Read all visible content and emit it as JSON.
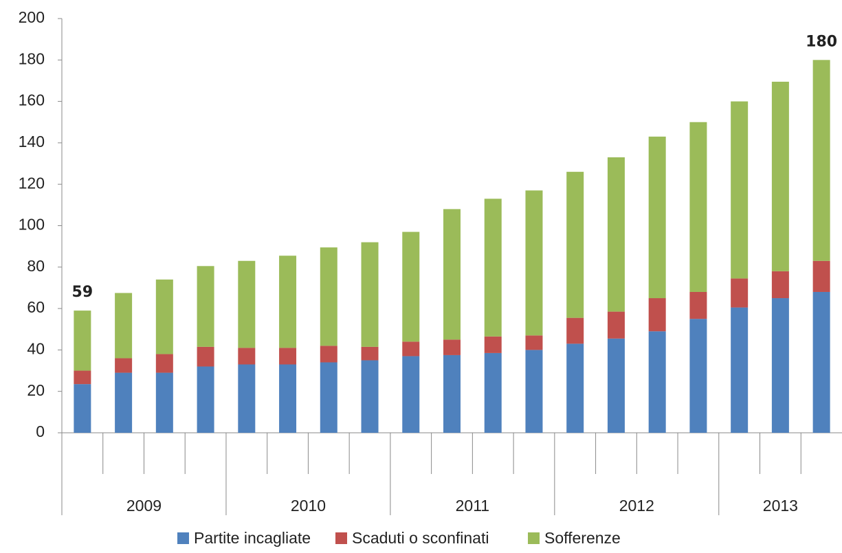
{
  "chart_data": {
    "type": "stacked-bar",
    "categories": [
      null,
      null,
      null,
      null,
      null,
      null,
      null,
      null,
      null,
      null,
      null,
      null,
      null,
      null,
      null,
      null,
      null,
      null,
      null
    ],
    "x_groups": [
      {
        "label": "2009",
        "size": 4
      },
      {
        "label": "2010",
        "size": 4
      },
      {
        "label": "2011",
        "size": 4
      },
      {
        "label": "2012",
        "size": 4
      },
      {
        "label": "2013",
        "size": 3
      }
    ],
    "series": [
      {
        "name": "Partite incagliate",
        "color": "#4f81bd",
        "values": [
          23.5,
          29,
          29,
          32,
          33,
          33,
          34,
          35,
          37,
          37.5,
          38.5,
          40,
          43,
          45.5,
          49,
          55,
          60.5,
          65,
          68
        ]
      },
      {
        "name": "Scaduti o sconfinati",
        "color": "#c0504d",
        "values": [
          6.5,
          7,
          9,
          9.5,
          8,
          8,
          8,
          6.5,
          7,
          7.5,
          8,
          7,
          12.5,
          13,
          16,
          13,
          14,
          13,
          15
        ]
      },
      {
        "name": "Sofferenze",
        "color": "#9bbb59",
        "values": [
          29,
          31.5,
          36,
          39,
          42,
          44.5,
          47.5,
          50.5,
          53,
          63,
          66.5,
          70,
          70.5,
          74.5,
          78,
          82,
          85.5,
          91.5,
          97
        ]
      }
    ],
    "total_labels": [
      59,
      null,
      null,
      null,
      null,
      null,
      null,
      null,
      null,
      null,
      null,
      null,
      null,
      null,
      null,
      null,
      null,
      null,
      180
    ],
    "ylim": [
      0,
      200
    ],
    "yticks": [
      0,
      20,
      40,
      60,
      80,
      100,
      120,
      140,
      160,
      180,
      200
    ],
    "grid": false,
    "legend": "bottom"
  }
}
